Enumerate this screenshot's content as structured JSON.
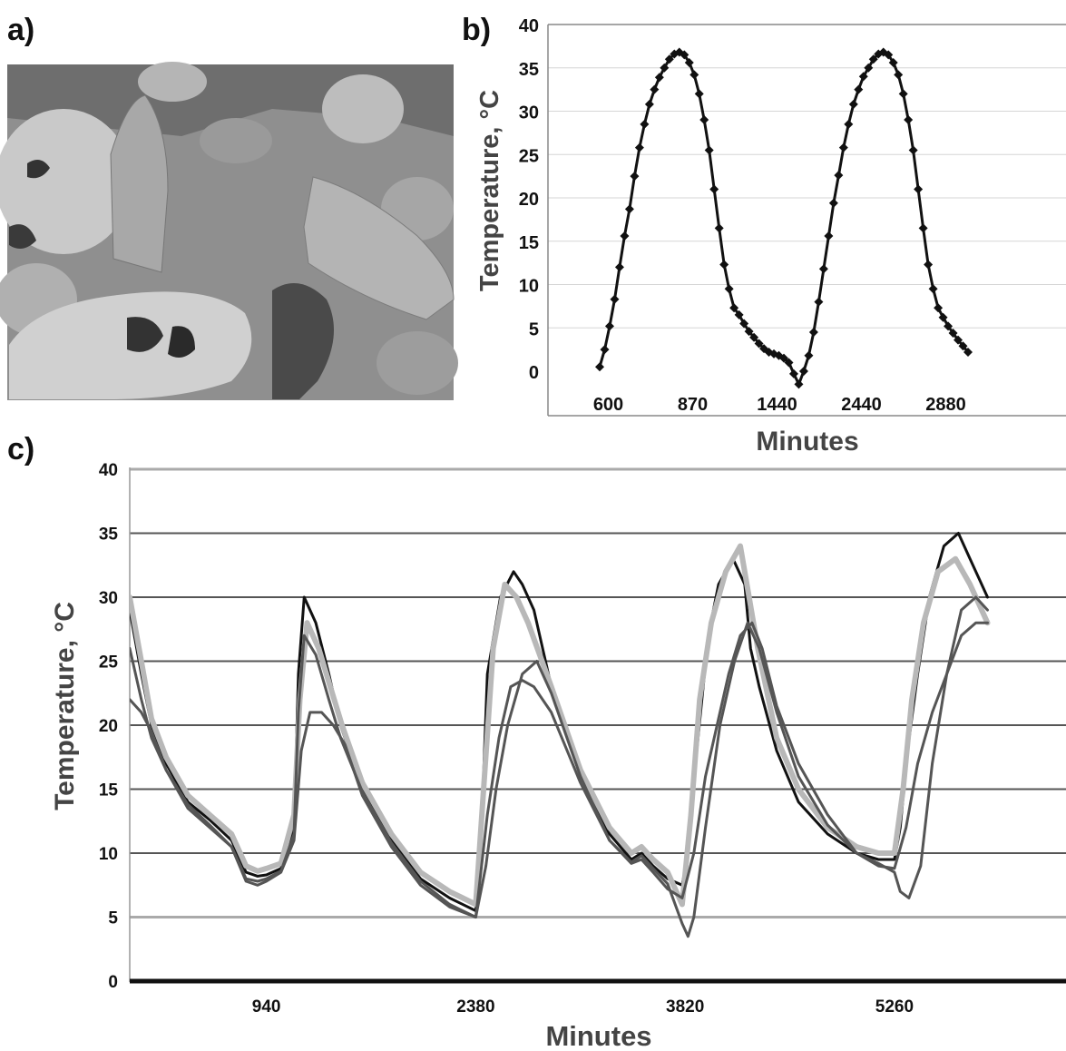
{
  "panels": {
    "a": {
      "label": "a)"
    },
    "b": {
      "label": "b)"
    },
    "c": {
      "label": "c)"
    }
  },
  "colors": {
    "background": "#ffffff",
    "line_dark": "#111111",
    "line_mid": "#555555",
    "line_light": "#b8b8b8",
    "grid_b": "#d6d6d6",
    "grid_c": "#555555",
    "axis_bottom_c": "#111111"
  },
  "chart_data": [
    {
      "panel": "b",
      "type": "line",
      "xlabel": "Minutes",
      "ylabel": "Temperature, °C",
      "ylim": [
        0,
        40
      ],
      "yticks": [
        0,
        5,
        10,
        15,
        20,
        25,
        30,
        35,
        40
      ],
      "xticks": [
        "600",
        "870",
        "1440",
        "2440",
        "2880"
      ],
      "grid": true,
      "marker": "diamond",
      "series": [
        {
          "values": [
            0.5,
            2.5,
            5.2,
            8.3,
            12.0,
            15.6,
            18.7,
            22.5,
            25.8,
            28.5,
            30.8,
            32.5,
            33.9,
            35.0,
            36.0,
            36.6,
            36.8,
            36.5,
            35.6,
            34.2,
            32.0,
            29.0,
            25.5,
            21.0,
            16.5,
            12.3,
            9.5,
            7.3,
            6.5,
            5.5,
            4.6,
            3.9,
            3.2,
            2.6,
            2.2,
            2.0,
            1.8,
            1.5,
            1.0,
            -0.3,
            -1.5,
            0.0,
            1.8,
            4.5,
            8.0,
            11.8,
            15.6,
            19.4,
            22.6,
            25.8,
            28.5,
            30.8,
            32.5,
            34.0,
            35.0,
            36.0,
            36.6,
            36.8,
            36.5,
            35.6,
            34.2,
            32.0,
            29.0,
            25.5,
            21.0,
            16.5,
            12.3,
            9.5,
            7.3,
            6.2,
            5.2,
            4.4,
            3.6,
            2.9,
            2.2
          ]
        }
      ]
    },
    {
      "panel": "c",
      "type": "line",
      "xlabel": "Minutes",
      "ylabel": "Temperature, °C",
      "ylim": [
        0,
        40
      ],
      "yticks": [
        0,
        5,
        10,
        15,
        20,
        25,
        30,
        35,
        40
      ],
      "xticks": [
        940,
        2380,
        3820,
        5260
      ],
      "xlim": [
        0,
        6440
      ],
      "grid": true,
      "series": [
        {
          "color": "dark",
          "x": [
            0,
            80,
            150,
            250,
            400,
            550,
            700,
            800,
            880,
            940,
            1040,
            1130,
            1160,
            1200,
            1280,
            1370,
            1450,
            1600,
            1800,
            2000,
            2200,
            2380,
            2420,
            2460,
            2550,
            2640,
            2700,
            2780,
            2900,
            3100,
            3300,
            3450,
            3520,
            3600,
            3700,
            3800,
            3840,
            3900,
            3980,
            4050,
            4150,
            4230,
            4270,
            4330,
            4450,
            4600,
            4800,
            5000,
            5150,
            5260,
            5300,
            5350,
            5420,
            5500,
            5600,
            5700,
            5780,
            5900
          ],
          "y": [
            29,
            24,
            20,
            17,
            14,
            12.6,
            11,
            8.5,
            8.2,
            8.3,
            8.8,
            12,
            24,
            30,
            28,
            24,
            20,
            15,
            11,
            8,
            6.5,
            5.5,
            12,
            24,
            30,
            32,
            31,
            29,
            23,
            16,
            11.5,
            9.5,
            10,
            9,
            8,
            7.5,
            10,
            18,
            27,
            31,
            33,
            31,
            26,
            23,
            18,
            14,
            11.5,
            10,
            9.5,
            9.5,
            12,
            18,
            24,
            30,
            34,
            35,
            33,
            30
          ]
        },
        {
          "color": "light",
          "x": [
            0,
            80,
            150,
            250,
            400,
            550,
            700,
            800,
            880,
            940,
            1040,
            1130,
            1170,
            1220,
            1300,
            1380,
            1460,
            1600,
            1800,
            2000,
            2200,
            2380,
            2440,
            2500,
            2580,
            2660,
            2740,
            2900,
            3100,
            3300,
            3450,
            3520,
            3600,
            3700,
            3800,
            3860,
            3920,
            4000,
            4100,
            4200,
            4260,
            4320,
            4450,
            4600,
            4800,
            5000,
            5150,
            5260,
            5320,
            5380,
            5460,
            5560,
            5680,
            5780,
            5900
          ],
          "y": [
            30,
            25,
            20.5,
            17.5,
            14.5,
            13,
            11.5,
            9,
            8.6,
            8.8,
            9.2,
            13,
            22,
            28,
            26,
            23,
            20,
            15.5,
            11.5,
            8.5,
            7,
            6,
            16,
            26,
            31,
            30,
            28,
            23,
            16.5,
            12,
            10,
            10.5,
            9.5,
            8.5,
            6,
            13,
            22,
            28,
            32,
            34,
            30,
            26,
            19,
            15,
            12,
            10.5,
            10,
            10,
            15,
            22,
            28,
            32,
            33,
            31,
            28
          ]
        },
        {
          "color": "mid",
          "x": [
            0,
            80,
            150,
            250,
            400,
            550,
            700,
            800,
            880,
            940,
            1040,
            1130,
            1180,
            1240,
            1320,
            1400,
            1480,
            1600,
            1800,
            2000,
            2200,
            2380,
            2460,
            2540,
            2620,
            2700,
            2780,
            2900,
            3100,
            3300,
            3450,
            3520,
            3600,
            3700,
            3800,
            3880,
            3960,
            4040,
            4120,
            4200,
            4280,
            4350,
            4450,
            4600,
            4800,
            5000,
            5150,
            5260,
            5340,
            5420,
            5520,
            5620,
            5720,
            5820,
            5900
          ],
          "y": [
            22,
            21,
            19.5,
            16.5,
            13.8,
            12.2,
            10.5,
            7.8,
            7.5,
            7.8,
            8.5,
            11,
            18,
            21,
            21,
            20,
            18.5,
            14.5,
            10.5,
            7.5,
            5.8,
            5,
            13,
            19,
            23,
            23.5,
            23,
            21,
            15.5,
            11,
            9.2,
            9.5,
            8.5,
            7.2,
            6.5,
            10,
            16,
            20,
            24,
            27,
            28,
            26,
            21.5,
            17,
            13,
            10,
            9,
            8.8,
            12,
            17,
            21,
            24,
            27,
            28,
            28
          ]
        },
        {
          "color": "mid",
          "x": [
            0,
            80,
            150,
            250,
            400,
            550,
            700,
            800,
            880,
            940,
            1040,
            1130,
            1160,
            1200,
            1280,
            1370,
            1450,
            1600,
            1800,
            2000,
            2200,
            2380,
            2450,
            2520,
            2600,
            2700,
            2800,
            2900,
            3100,
            3300,
            3450,
            3520,
            3600,
            3700,
            3800,
            3840,
            3880,
            3960,
            4060,
            4160,
            4250,
            4330,
            4450,
            4600,
            4800,
            5000,
            5150,
            5260,
            5300,
            5360,
            5440,
            5520,
            5620,
            5720,
            5820,
            5900
          ],
          "y": [
            26,
            22,
            19,
            16.5,
            13.5,
            12,
            10.5,
            8,
            7.8,
            8,
            8.6,
            11.5,
            21,
            27,
            25.5,
            22,
            19,
            14.8,
            10.8,
            7.8,
            6,
            5,
            9,
            15,
            20,
            24,
            25,
            22.5,
            16,
            11,
            9.3,
            9.8,
            8.8,
            7.6,
            4.5,
            3.5,
            5,
            12,
            20,
            25,
            28,
            26,
            21,
            16,
            12.2,
            10,
            9.2,
            8.5,
            7,
            6.5,
            9,
            17,
            24,
            29,
            30,
            29
          ]
        }
      ]
    }
  ]
}
